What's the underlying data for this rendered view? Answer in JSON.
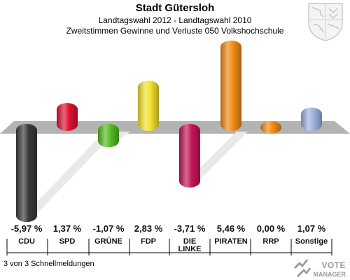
{
  "header": {
    "title": "Stadt Gütersloh",
    "subtitle1": "Landtagswahl 2012 - Landtagswahl 2010",
    "subtitle2": "Zweitstimmen Gewinne und Verluste 050 Volkshochschule"
  },
  "footer": {
    "text": "3 von 3 Schnellmeldungen"
  },
  "logo": {
    "line1": "VOTE",
    "line2": "MANAGER"
  },
  "chart_data": {
    "type": "bar",
    "title": "Landtagswahl 2012 - Landtagswahl 2010",
    "categories": [
      "CDU",
      "SPD",
      "GRÜNE",
      "FDP",
      "DIE LINKE",
      "PIRATEN",
      "RRP",
      "Sonstige"
    ],
    "values": [
      -5.97,
      1.37,
      -1.07,
      2.83,
      -3.71,
      5.46,
      0.0,
      1.07
    ],
    "value_labels": [
      "-5,97 %",
      "1,37 %",
      "-1,07 %",
      "2,83 %",
      "-3,71 %",
      "5,46 %",
      "0,00 %",
      "1,07 %"
    ],
    "colors": [
      "#3a3a3a",
      "#dd1133",
      "#55bb22",
      "#f2e22e",
      "#c31555",
      "#f08a12",
      "#f08a12",
      "#9fb0e0"
    ],
    "grid": false
  }
}
